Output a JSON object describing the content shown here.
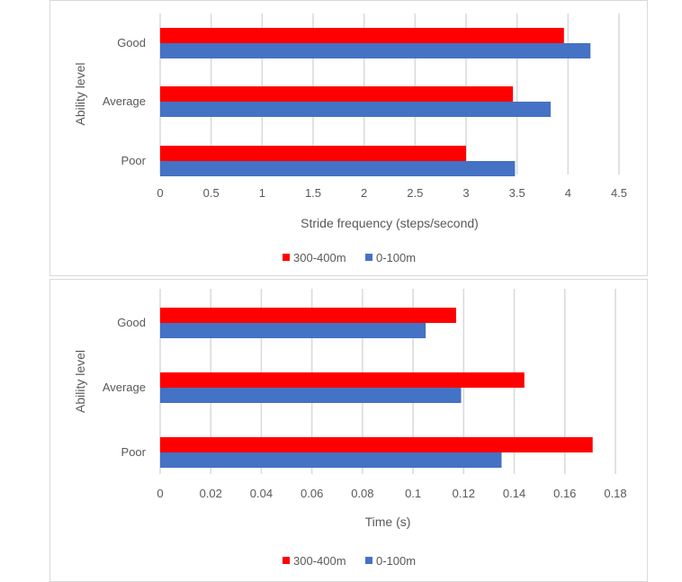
{
  "colors": {
    "300-400m": "#ff0000",
    "0-100m": "#4472c4",
    "grid": "#d9d9d9"
  },
  "chart_data": [
    {
      "type": "bar",
      "orientation": "horizontal",
      "categories": [
        "Good",
        "Average",
        "Poor"
      ],
      "series": [
        {
          "name": "300-400m",
          "values": [
            3.96,
            3.46,
            3.0
          ]
        },
        {
          "name": "0-100m",
          "values": [
            4.22,
            3.83,
            3.48
          ]
        }
      ],
      "xlabel": "Stride frequency (steps/second)",
      "ylabel": "Ability level",
      "xlim": [
        0,
        4.5
      ],
      "xticks": [
        "0",
        "0.5",
        "1",
        "1.5",
        "2",
        "2.5",
        "3",
        "3.5",
        "4",
        "4.5"
      ],
      "grid": true,
      "legend": "bottom"
    },
    {
      "type": "bar",
      "orientation": "horizontal",
      "categories": [
        "Good",
        "Average",
        "Poor"
      ],
      "series": [
        {
          "name": "300-400m",
          "values": [
            0.117,
            0.144,
            0.171
          ]
        },
        {
          "name": "0-100m",
          "values": [
            0.105,
            0.119,
            0.135
          ]
        }
      ],
      "xlabel": "Time (s)",
      "ylabel": "Ability level",
      "xlim": [
        0,
        0.18
      ],
      "xticks": [
        "0",
        "0.02",
        "0.04",
        "0.06",
        "0.08",
        "0.1",
        "0.12",
        "0.14",
        "0.16",
        "0.18"
      ],
      "grid": true,
      "legend": "bottom"
    }
  ]
}
